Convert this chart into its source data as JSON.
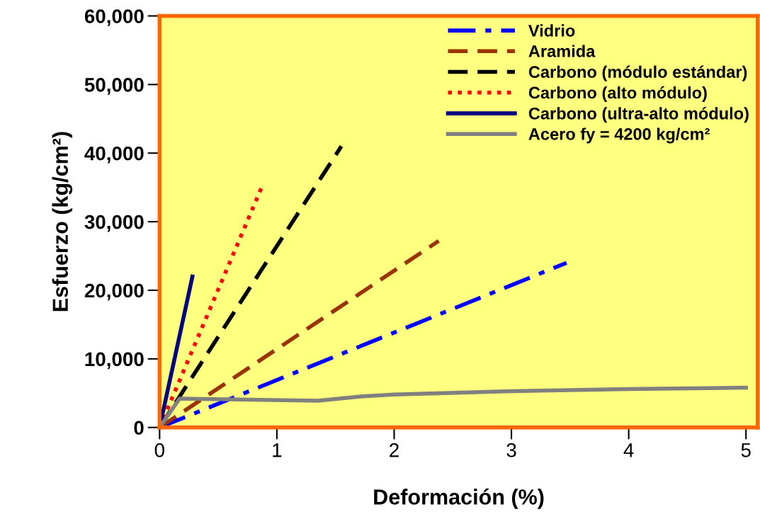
{
  "chart_data": {
    "type": "line",
    "xlabel": "Deformación (%)",
    "ylabel": "Esfuerzo (kg/cm²)",
    "xlim": [
      0,
      5.1
    ],
    "xticks": [
      0,
      1,
      2,
      3,
      4,
      5
    ],
    "ylim": [
      0,
      60000
    ],
    "yticks": [
      {
        "value": 0,
        "label": "0"
      },
      {
        "value": 10000,
        "label": "10,000"
      },
      {
        "value": 20000,
        "label": "20,000"
      },
      {
        "value": 30000,
        "label": "30,000"
      },
      {
        "value": 40000,
        "label": "40,000"
      },
      {
        "value": 50000,
        "label": "50,000"
      },
      {
        "value": 60000,
        "label": "60,000"
      }
    ],
    "grid": false,
    "legend": "top right",
    "marker": "none",
    "series": [
      {
        "name": "Vidrio",
        "color": "#0000ff",
        "line_style": "dashdot",
        "x": [
          0,
          3.47
        ],
        "values": [
          0,
          24000
        ]
      },
      {
        "name": "Aramida",
        "color": "#993300",
        "line_style": "dashed",
        "x": [
          0,
          2.38
        ],
        "values": [
          0,
          27200
        ]
      },
      {
        "name": "Carbono (módulo estándar)",
        "color": "#000000",
        "line_style": "dashed",
        "x": [
          0,
          1.55
        ],
        "values": [
          0,
          41000
        ]
      },
      {
        "name": "Carbono (alto módulo)",
        "color": "#ff0000",
        "line_style": "dotted",
        "x": [
          0,
          0.87
        ],
        "values": [
          0,
          35000
        ]
      },
      {
        "name": "Carbono (ultra-alto módulo)",
        "color": "#000080",
        "line_style": "solid",
        "x": [
          0,
          0.28
        ],
        "values": [
          0,
          22000
        ]
      },
      {
        "name": "Acero fy = 4200 kg/cm²",
        "color": "#808080",
        "line_style": "solid",
        "x": [
          0,
          0.17,
          1.35,
          1.7,
          2.0,
          3.0,
          4.0,
          5.0
        ],
        "values": [
          0,
          4200,
          3900,
          4500,
          4800,
          5300,
          5600,
          5800
        ]
      }
    ]
  }
}
